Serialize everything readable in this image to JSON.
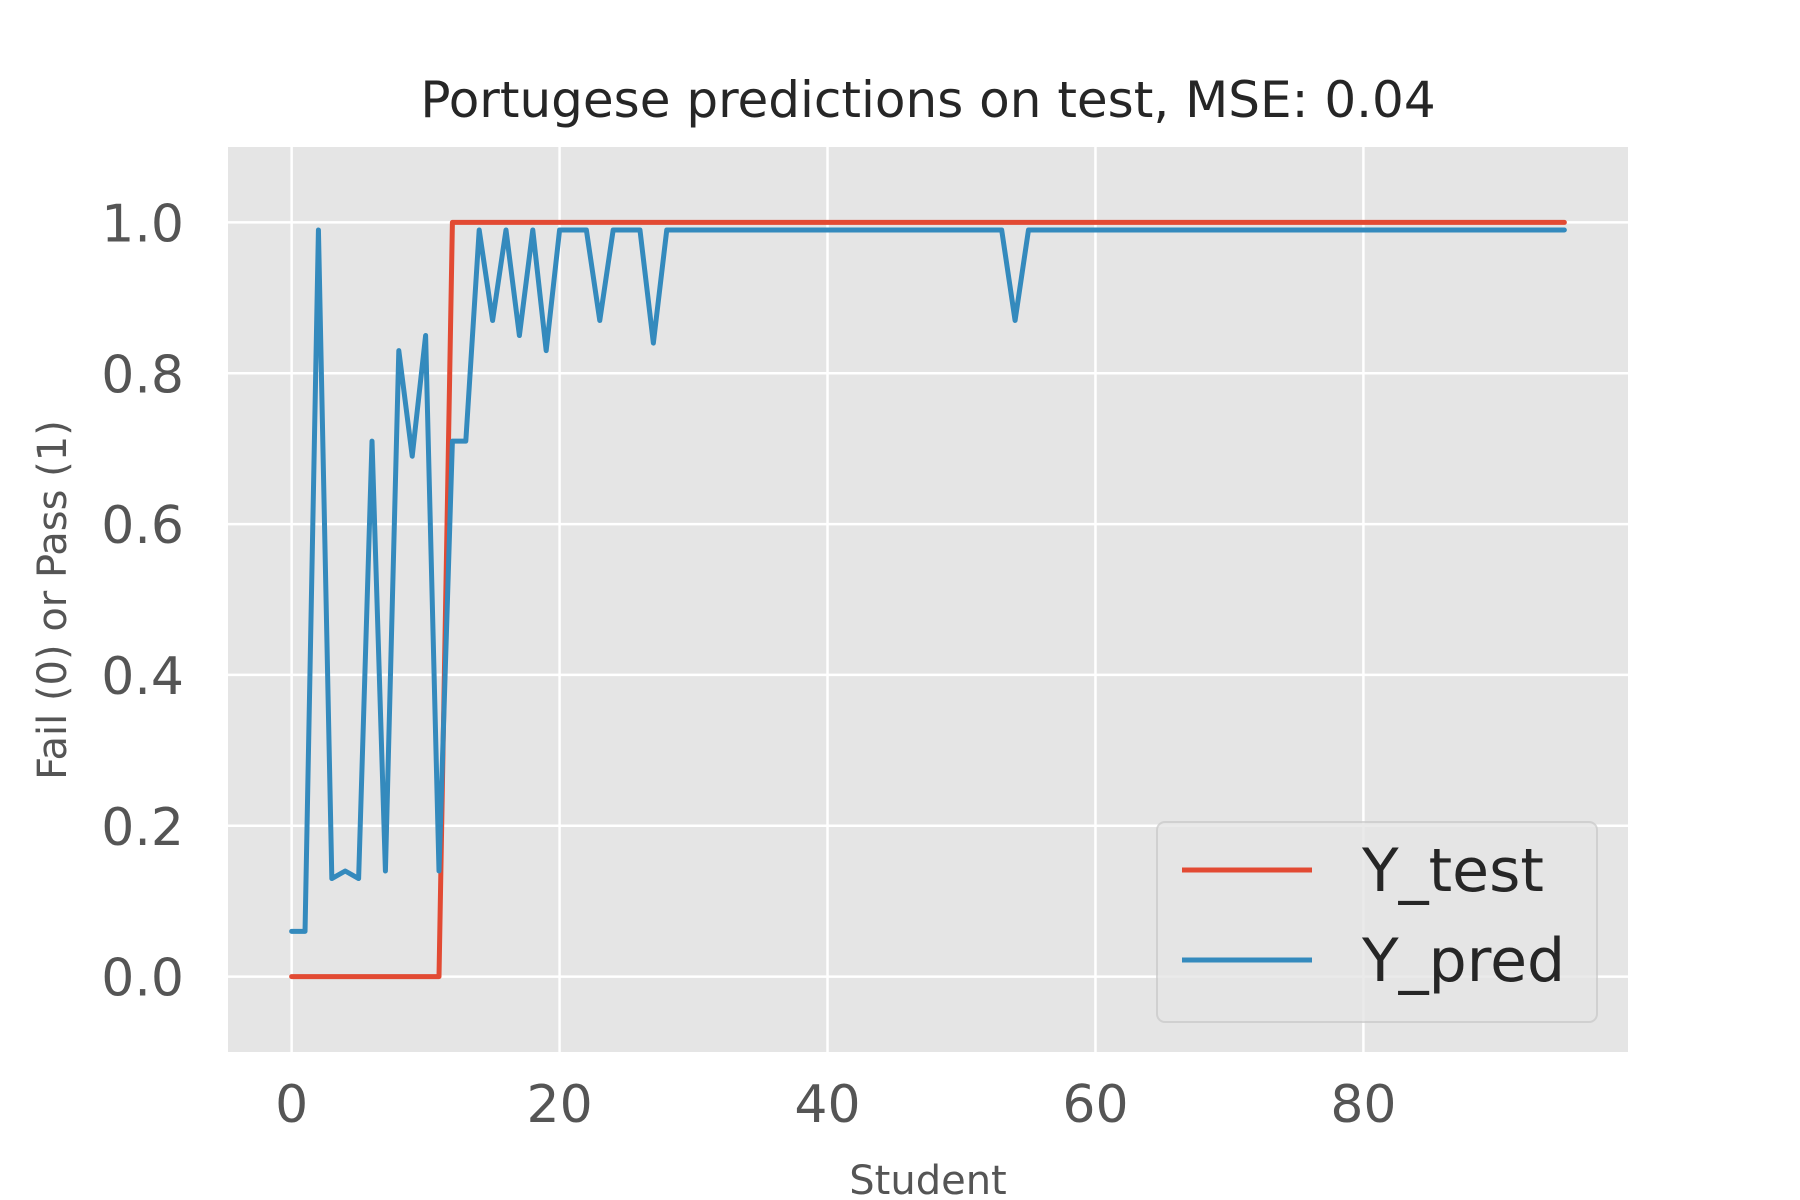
{
  "chart_data": {
    "type": "line",
    "title": "Portugese predictions on test, MSE: 0.04",
    "xlabel": "Student",
    "ylabel": "Fail (0) or Pass (1)",
    "xlim": [
      -4.75,
      99.75
    ],
    "ylim": [
      -0.1,
      1.1
    ],
    "xticks": [
      0,
      20,
      40,
      60,
      80
    ],
    "yticks": [
      0.0,
      0.2,
      0.4,
      0.6,
      0.8,
      1.0
    ],
    "xtick_labels": [
      "0",
      "20",
      "40",
      "60",
      "80"
    ],
    "ytick_labels": [
      "0.0",
      "0.2",
      "0.4",
      "0.6",
      "0.8",
      "1.0"
    ],
    "grid": true,
    "legend_position": "lower-right",
    "background": "#e5e5e5",
    "series": [
      {
        "name": "Y_test",
        "color": "#e24a33",
        "x": [
          0,
          11,
          12,
          95
        ],
        "y": [
          0,
          0,
          1,
          1
        ]
      },
      {
        "name": "Y_pred",
        "color": "#348abd",
        "x": [
          0,
          1,
          2,
          3,
          4,
          5,
          6,
          7,
          8,
          9,
          10,
          11,
          12,
          13,
          14,
          15,
          16,
          17,
          18,
          19,
          20,
          21,
          22,
          23,
          24,
          25,
          26,
          27,
          28,
          53,
          54,
          55,
          95
        ],
        "y": [
          0.06,
          0.06,
          0.99,
          0.13,
          0.14,
          0.13,
          0.71,
          0.14,
          0.83,
          0.69,
          0.85,
          0.14,
          0.71,
          0.71,
          0.99,
          0.87,
          0.99,
          0.85,
          0.99,
          0.83,
          0.99,
          0.99,
          0.99,
          0.87,
          0.99,
          0.99,
          0.99,
          0.84,
          0.99,
          0.99,
          0.87,
          0.99,
          0.99
        ]
      }
    ]
  }
}
